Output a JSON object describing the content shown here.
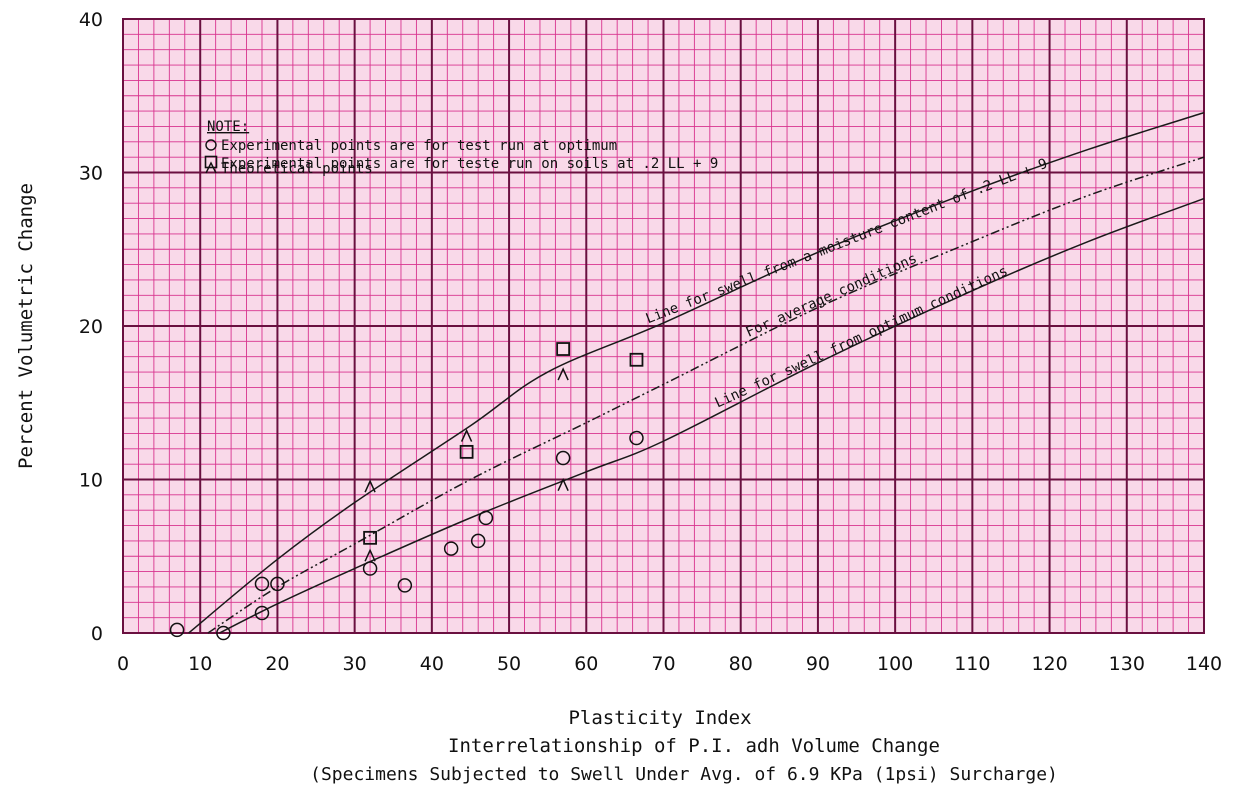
{
  "chart_data": {
    "type": "scatter",
    "xlabel": "Plasticity Index",
    "ylabel": "Percent Volumetric Change",
    "title": "Interrelationship of P.I. adh Volume Change",
    "subtitle": "(Specimens Subjected to Swell Under Avg. of 6.9 KPa (1psi) Surcharge)",
    "xlim": [
      0,
      140
    ],
    "ylim": [
      0,
      40
    ],
    "xticks": [
      0,
      10,
      20,
      30,
      40,
      50,
      60,
      70,
      80,
      90,
      100,
      110,
      120,
      130,
      140
    ],
    "yticks": [
      0,
      10,
      20,
      30,
      40
    ],
    "grid": true,
    "background_color": "#f9d9e9",
    "minor_grid_color": "#d8338e",
    "major_grid_color": "#6a1040",
    "note": {
      "heading": "NOTE:",
      "lines": [
        "Experimental points are for test run at optimum",
        "Experimental points are for teste run on soils at .2 LL + 9",
        "Theoretical points"
      ],
      "markers": [
        "circle",
        "square",
        "triangle"
      ]
    },
    "series": [
      {
        "name": "Experimental points are for test run at optimum",
        "marker": "circle",
        "points": [
          [
            7,
            0.2
          ],
          [
            13,
            0
          ],
          [
            18,
            3.2
          ],
          [
            20,
            3.2
          ],
          [
            18,
            1.3
          ],
          [
            32,
            4.2
          ],
          [
            36.5,
            3.1
          ],
          [
            42.5,
            5.5
          ],
          [
            46,
            6
          ],
          [
            47,
            7.5
          ],
          [
            57,
            11.4
          ],
          [
            66.5,
            12.7
          ]
        ]
      },
      {
        "name": "Experimental points are for teste run on soils at .2 LL + 9",
        "marker": "square",
        "points": [
          [
            32,
            6.2
          ],
          [
            44.5,
            11.8
          ],
          [
            57,
            18.5
          ],
          [
            66.5,
            17.8
          ]
        ]
      },
      {
        "name": "Theoretical points",
        "marker": "triangle",
        "points": [
          [
            32,
            9.5
          ],
          [
            32,
            5
          ],
          [
            44.5,
            12.8
          ],
          [
            57,
            16.8
          ],
          [
            57,
            9.6
          ]
        ]
      }
    ],
    "curves": [
      {
        "label": "Line for swell from a moisture content of .2 LL + 9",
        "style": "solid",
        "points": [
          [
            8.5,
            0
          ],
          [
            20,
            4.8
          ],
          [
            30,
            8.5
          ],
          [
            45,
            13.5
          ],
          [
            55,
            17
          ],
          [
            70,
            20.2
          ],
          [
            90,
            24.8
          ],
          [
            110,
            28.8
          ],
          [
            125,
            31.5
          ],
          [
            140,
            33.9
          ]
        ]
      },
      {
        "label": "For average conditions",
        "style": "dash-dot-dot",
        "points": [
          [
            11,
            0
          ],
          [
            20,
            3
          ],
          [
            30,
            5.8
          ],
          [
            45,
            10
          ],
          [
            60,
            13.7
          ],
          [
            70,
            16.2
          ],
          [
            90,
            21.2
          ],
          [
            110,
            25.5
          ],
          [
            125,
            28.5
          ],
          [
            140,
            31
          ]
        ]
      },
      {
        "label": "Line for swell from optimum conditions",
        "style": "solid",
        "points": [
          [
            12.5,
            0
          ],
          [
            20,
            1.9
          ],
          [
            30,
            4.2
          ],
          [
            45,
            7.5
          ],
          [
            60,
            10.5
          ],
          [
            70,
            12.5
          ],
          [
            90,
            17.6
          ],
          [
            110,
            22.3
          ],
          [
            125,
            25.5
          ],
          [
            140,
            28.3
          ]
        ]
      }
    ]
  }
}
